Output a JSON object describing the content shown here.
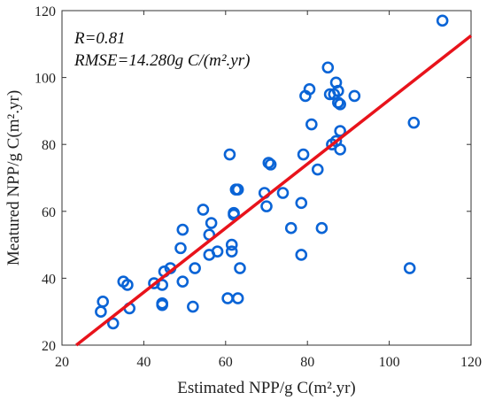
{
  "chart_data": {
    "type": "scatter",
    "xlabel": "Estimated NPP/g C(m².yr)",
    "ylabel": "Meatured NPP/g C(m².yr)",
    "xlim": [
      20,
      120
    ],
    "ylim": [
      20,
      120
    ],
    "xticks": [
      "20",
      "40",
      "60",
      "80",
      "100",
      "120"
    ],
    "yticks": [
      "20",
      "40",
      "60",
      "80",
      "100",
      "120"
    ],
    "grid": false,
    "annotations": [
      "R=0.81",
      "RMSE=14.280g C/(m².yr)"
    ],
    "fit_line": {
      "x": [
        23.5,
        120
      ],
      "y": [
        20,
        112.5
      ],
      "color": "#e8131b"
    },
    "marker_color": "#0a64d6",
    "points": [
      [
        29.5,
        30
      ],
      [
        30,
        33
      ],
      [
        32.5,
        26.5
      ],
      [
        35,
        39
      ],
      [
        36,
        38
      ],
      [
        36.5,
        31
      ],
      [
        42.5,
        38.5
      ],
      [
        44.5,
        32
      ],
      [
        44.5,
        32.5
      ],
      [
        44.5,
        38
      ],
      [
        45,
        42
      ],
      [
        46.5,
        43
      ],
      [
        49,
        49
      ],
      [
        49.5,
        39
      ],
      [
        49.5,
        54.5
      ],
      [
        52,
        31.5
      ],
      [
        52.5,
        43
      ],
      [
        54.5,
        60.5
      ],
      [
        56,
        47
      ],
      [
        56,
        53
      ],
      [
        56.5,
        56.5
      ],
      [
        58,
        48
      ],
      [
        60.5,
        34
      ],
      [
        61,
        77
      ],
      [
        61.5,
        48
      ],
      [
        61.5,
        50
      ],
      [
        62,
        59
      ],
      [
        62,
        59.5
      ],
      [
        62.5,
        66.5
      ],
      [
        63,
        66.5
      ],
      [
        63,
        34
      ],
      [
        63.5,
        43
      ],
      [
        69.5,
        65.5
      ],
      [
        70,
        61.5
      ],
      [
        70.5,
        74.5
      ],
      [
        71,
        74
      ],
      [
        74,
        65.5
      ],
      [
        76,
        55
      ],
      [
        78.5,
        47
      ],
      [
        78.5,
        62.5
      ],
      [
        79,
        77
      ],
      [
        79.5,
        94.5
      ],
      [
        80.5,
        96.5
      ],
      [
        81,
        86
      ],
      [
        82.5,
        72.5
      ],
      [
        83.5,
        55
      ],
      [
        85,
        103
      ],
      [
        85.5,
        95
      ],
      [
        86,
        80
      ],
      [
        86.5,
        95
      ],
      [
        87,
        98.5
      ],
      [
        87,
        81
      ],
      [
        87.5,
        96
      ],
      [
        87.5,
        92.5
      ],
      [
        88,
        78.5
      ],
      [
        88,
        84
      ],
      [
        88,
        92
      ],
      [
        91.5,
        94.5
      ],
      [
        105,
        43
      ],
      [
        106,
        86.5
      ],
      [
        113,
        117
      ]
    ]
  }
}
